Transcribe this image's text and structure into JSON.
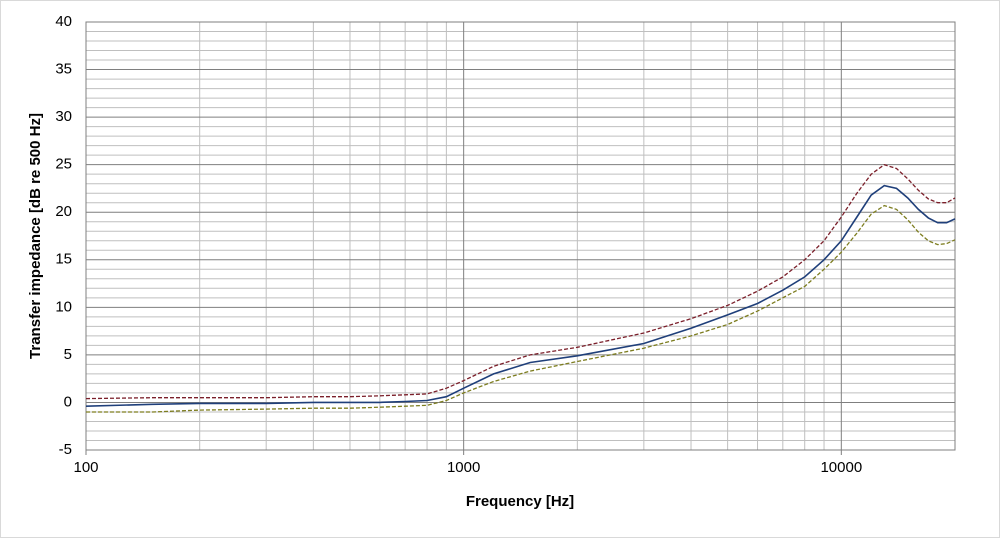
{
  "chart_data": {
    "type": "line",
    "x_label": "Frequency [Hz]",
    "y_label": "Transfer impedance [dB re 500 Hz]",
    "x": [
      100,
      150,
      200,
      300,
      400,
      500,
      600,
      700,
      800,
      900,
      1000,
      1200,
      1500,
      2000,
      3000,
      4000,
      5000,
      6000,
      7000,
      8000,
      9000,
      10000,
      11000,
      12000,
      13000,
      14000,
      15000,
      16000,
      17000,
      18000,
      19000,
      20000
    ],
    "series": [
      {
        "color": "#7b1f2a",
        "dash": true,
        "values": [
          0.4,
          0.5,
          0.5,
          0.5,
          0.6,
          0.6,
          0.7,
          0.8,
          0.9,
          1.5,
          2.3,
          3.8,
          5.0,
          5.8,
          7.3,
          8.8,
          10.2,
          11.7,
          13.2,
          15,
          17,
          19.5,
          22,
          24,
          25,
          24.6,
          23.5,
          22.3,
          21.4,
          21,
          21,
          21.5
        ]
      },
      {
        "color": "#1f3f7a",
        "dash": false,
        "values": [
          -0.4,
          -0.2,
          -0.1,
          -0.1,
          0,
          0,
          0,
          0.1,
          0.2,
          0.6,
          1.5,
          3.0,
          4.2,
          4.9,
          6.2,
          7.8,
          9.2,
          10.4,
          11.8,
          13.2,
          15,
          17,
          19.5,
          21.8,
          22.8,
          22.5,
          21.5,
          20.3,
          19.4,
          18.9,
          18.9,
          19.3
        ]
      },
      {
        "color": "#7d7d1f",
        "dash": true,
        "values": [
          -1,
          -1,
          -0.8,
          -0.7,
          -0.6,
          -0.6,
          -0.5,
          -0.4,
          -0.3,
          0.2,
          1.0,
          2.2,
          3.3,
          4.3,
          5.7,
          7.0,
          8.2,
          9.6,
          11.0,
          12.2,
          14,
          15.8,
          17.8,
          19.8,
          20.7,
          20.3,
          19.2,
          17.9,
          17,
          16.6,
          16.7,
          17.1
        ]
      }
    ],
    "xlim": [
      100,
      20000
    ],
    "x_log": true,
    "xticks": [
      100,
      1000,
      10000
    ],
    "xminor": [
      200,
      300,
      400,
      500,
      600,
      700,
      800,
      900,
      2000,
      3000,
      4000,
      5000,
      6000,
      7000,
      8000,
      9000
    ],
    "ylim": [
      -5,
      40
    ],
    "yticks": [
      -5,
      0,
      5,
      10,
      15,
      20,
      25,
      30,
      35,
      40
    ],
    "yminor": [
      -4,
      -3,
      -2,
      -1,
      1,
      2,
      3,
      4,
      6,
      7,
      8,
      9,
      11,
      12,
      13,
      14,
      16,
      17,
      18,
      19,
      21,
      22,
      23,
      24,
      26,
      27,
      28,
      29,
      31,
      32,
      33,
      34,
      36,
      37,
      38,
      39
    ],
    "grid": true
  }
}
